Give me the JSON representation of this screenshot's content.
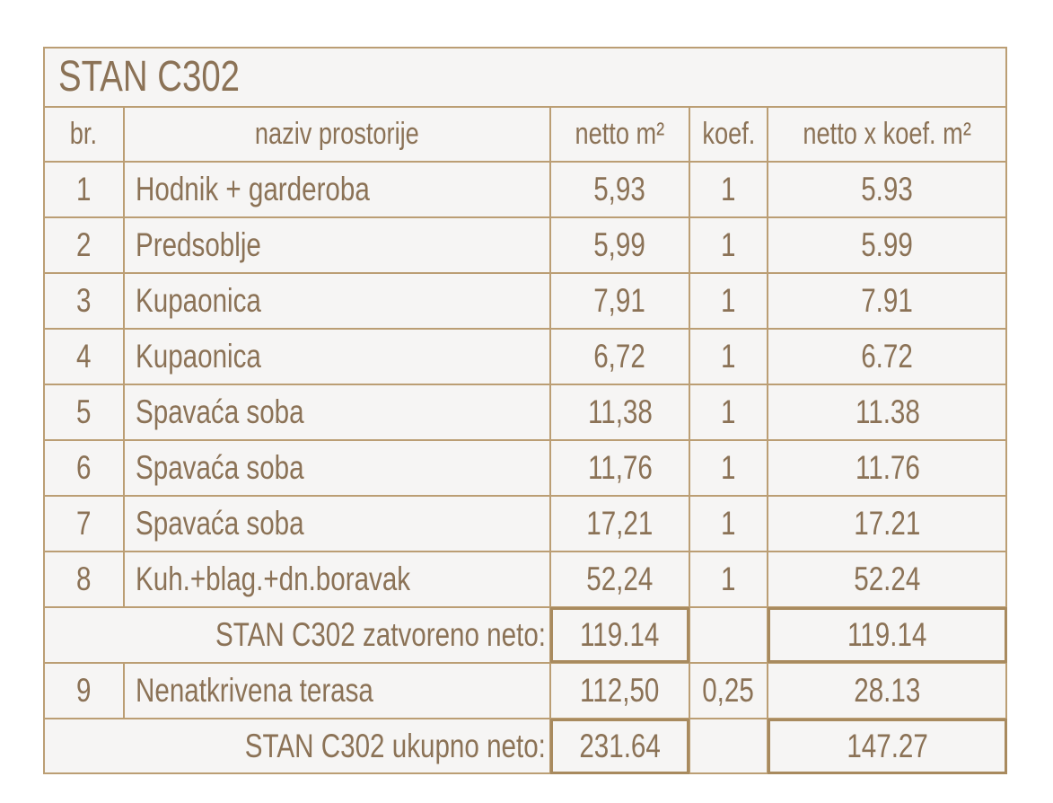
{
  "title": "STAN C302",
  "table": {
    "header": [
      "br.",
      "naziv prostorije",
      "netto m²",
      "koef.",
      "netto x koef. m²"
    ],
    "rows": [
      [
        "1",
        "Hodnik + garderoba",
        "5,93",
        "1",
        "5.93"
      ],
      [
        "2",
        "Predsoblje",
        "5,99",
        "1",
        "5.99"
      ],
      [
        "3",
        "Kupaonica",
        "7,91",
        "1",
        "7.91"
      ],
      [
        "4",
        "Kupaonica",
        "6,72",
        "1",
        "6.72"
      ],
      [
        "5",
        "Spavaća soba",
        "11,38",
        "1",
        "11.38"
      ],
      [
        "6",
        "Spavaća soba",
        "11,76",
        "1",
        "11.76"
      ],
      [
        "7",
        "Spavaća soba",
        "17,21",
        "1",
        "17.21"
      ],
      [
        "8",
        "Kuh.+blag.+dn.boravak",
        "52,24",
        "1",
        "52.24"
      ],
      {
        "label": "STAN C302 zatvoreno neto:",
        "netto": "119.14",
        "total": "119.14"
      },
      [
        "9",
        "Nenatkrivena terasa",
        "112,50",
        "0,25",
        "28.13"
      ],
      {
        "label": "STAN C302 ukupno neto:",
        "netto": "231.64",
        "total": "147.27"
      }
    ]
  }
}
